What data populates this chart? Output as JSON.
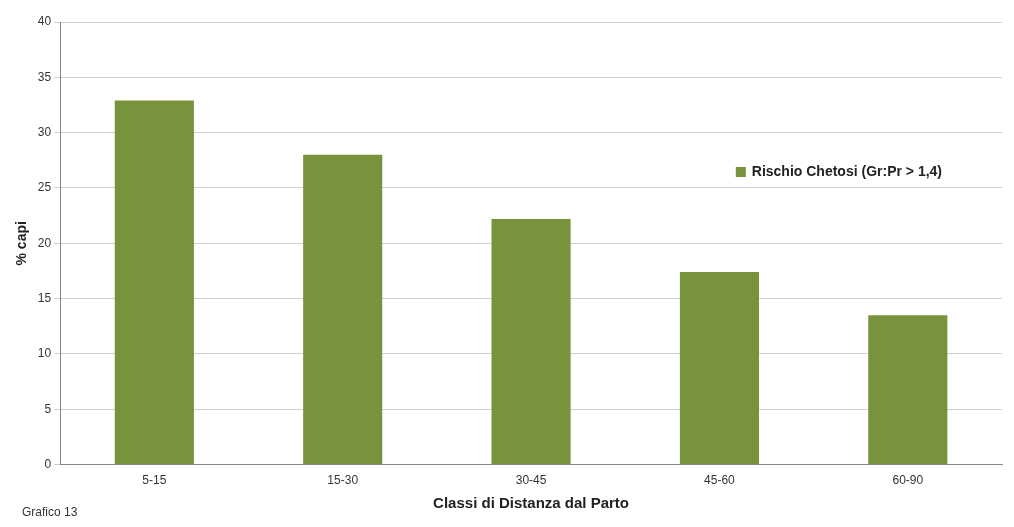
{
  "chart_data": {
    "type": "bar",
    "xlabel": "Classi di Distanza dal Parto",
    "ylabel": "% capi",
    "categories": [
      "5-15",
      "15-30",
      "30-45",
      "45-60",
      "60-90"
    ],
    "series": [
      {
        "name": "Rischio Chetosi (Gr:Pr > 1,4)",
        "color": "#77933c",
        "values": [
          32.9,
          28,
          22.2,
          17.4,
          13.5
        ]
      }
    ],
    "ylim": [
      0,
      40
    ],
    "yticks": [
      0,
      5,
      10,
      15,
      20,
      25,
      30,
      35,
      40
    ],
    "grid": "y",
    "legend": "right",
    "annotations": [
      "Grafico 13"
    ]
  }
}
